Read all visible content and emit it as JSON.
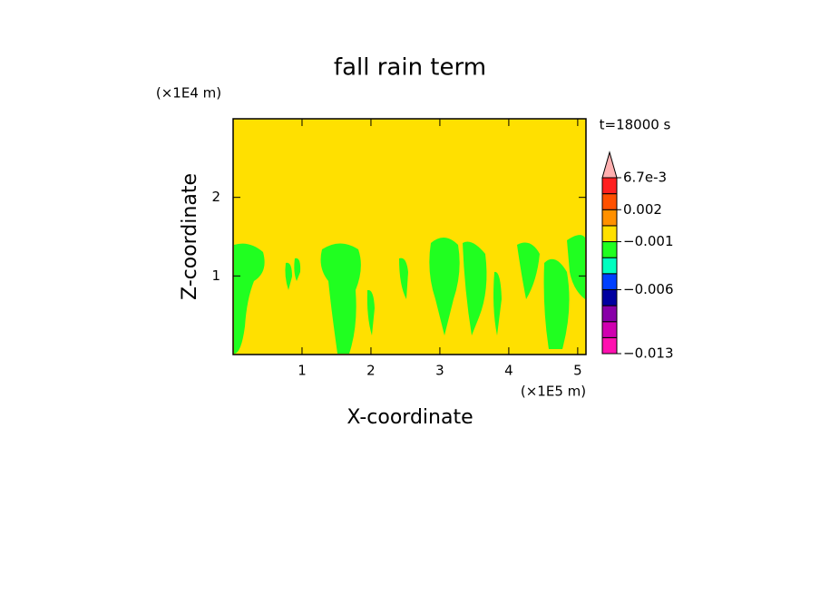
{
  "chart_data": {
    "type": "contour",
    "title": "fall rain term",
    "x_label": "X-coordinate",
    "y_label": "Z-coordinate",
    "x_unit": "(×1E5 m)",
    "y_unit": "(×1E4 m)",
    "time_label": "t=18000 s",
    "xlim": [
      0,
      5.12
    ],
    "xticks": [
      1,
      2,
      3,
      4,
      5
    ],
    "ylim": [
      0,
      3
    ],
    "yticks": [
      1,
      2
    ],
    "background_color": "#ffe000",
    "colorbar": {
      "colors": [
        "#ff10b0",
        "#d000b0",
        "#8800a8",
        "#0000a0",
        "#0040ff",
        "#00ffc0",
        "#20ff20",
        "#ffe000",
        "#ff9000",
        "#ff5000",
        "#ff2020",
        "#ffb0b0"
      ],
      "levels": [
        {
          "value": -0.013,
          "label": "−0.013"
        },
        null,
        null,
        null,
        {
          "value": -0.006,
          "label": "−0.006"
        },
        null,
        null,
        {
          "value": -0.001,
          "label": "−0.001"
        },
        null,
        0.002,
        null,
        {
          "value": 0.0067,
          "label": "6.7e-3"
        }
      ]
    }
  }
}
